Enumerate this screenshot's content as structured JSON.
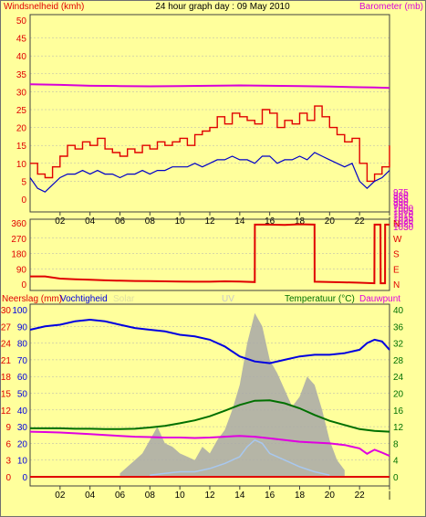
{
  "title": "24 hour graph day : 09 May 2010",
  "colors": {
    "background": "#FFFF9C",
    "wind": "#E00000",
    "gust": "#E00000",
    "wind_avg": "#0000C8",
    "barometer": "#D800D8",
    "direction": "#E00000",
    "humidity": "#0000E0",
    "temperature": "#007000",
    "dewpoint": "#E000E0",
    "rain": "#E00000",
    "solar": "#A8A8A8",
    "uv": "#A8C8F0",
    "grid": "#B0B0B0"
  },
  "chart_data": [
    {
      "type": "line",
      "name": "wind-barometer",
      "left_label": "Windsnelheid (kmh)",
      "right_label": "Barometer (mb)",
      "x_ticks": [
        "02",
        "04",
        "06",
        "08",
        "10",
        "12",
        "14",
        "16",
        "18",
        "20",
        "22",
        "|"
      ],
      "x_range": [
        0,
        24
      ],
      "y_left_ticks": [
        "0",
        "5",
        "10",
        "15",
        "20",
        "25",
        "30",
        "35",
        "40",
        "45",
        "50"
      ],
      "y_left_range": [
        0,
        50
      ],
      "y_right_ticks": [
        "975",
        "980",
        "985",
        "990",
        "995",
        "1000",
        "1005",
        "1010",
        "1015",
        "1020",
        "1025",
        "1030"
      ],
      "y_right_range": [
        972.5,
        1032.5
      ],
      "series": [
        {
          "key": "gust",
          "style": "step",
          "x": [
            0,
            0.5,
            1,
            1.5,
            2,
            2.5,
            3,
            3.5,
            4,
            4.5,
            5,
            5.5,
            6,
            6.5,
            7,
            7.5,
            8,
            8.5,
            9,
            9.5,
            10,
            10.5,
            11,
            11.5,
            12,
            12.5,
            13,
            13.5,
            14,
            14.5,
            15,
            15.5,
            16,
            16.5,
            17,
            17.5,
            18,
            18.5,
            19,
            19.5,
            20,
            20.5,
            21,
            21.5,
            22,
            22.5,
            23,
            23.5,
            24
          ],
          "values": [
            10,
            7,
            6,
            9,
            12,
            15,
            14,
            16,
            15,
            17,
            14,
            13,
            12,
            14,
            13,
            15,
            14,
            16,
            15,
            16,
            17,
            15,
            18,
            19,
            20,
            23,
            21,
            24,
            23,
            22,
            21,
            25,
            24,
            20,
            22,
            21,
            24,
            22,
            26,
            23,
            20,
            18,
            16,
            17,
            10,
            5,
            7,
            9,
            15
          ]
        },
        {
          "key": "wind_avg",
          "style": "line",
          "x": [
            0,
            0.5,
            1,
            1.5,
            2,
            2.5,
            3,
            3.5,
            4,
            4.5,
            5,
            5.5,
            6,
            6.5,
            7,
            7.5,
            8,
            8.5,
            9,
            9.5,
            10,
            10.5,
            11,
            11.5,
            12,
            12.5,
            13,
            13.5,
            14,
            14.5,
            15,
            15.5,
            16,
            16.5,
            17,
            17.5,
            18,
            18.5,
            19,
            19.5,
            20,
            20.5,
            21,
            21.5,
            22,
            22.5,
            23,
            23.5,
            24
          ],
          "values": [
            6,
            3,
            2,
            4,
            6,
            7,
            7,
            8,
            7,
            8,
            7,
            7,
            6,
            7,
            7,
            8,
            7,
            8,
            8,
            9,
            9,
            9,
            10,
            9,
            10,
            11,
            11,
            12,
            11,
            11,
            10,
            12,
            12,
            10,
            11,
            11,
            12,
            11,
            13,
            12,
            11,
            10,
            9,
            10,
            5,
            3,
            5,
            6,
            8
          ]
        },
        {
          "key": "barometer",
          "axis": "right",
          "style": "line",
          "x": [
            0,
            2,
            4,
            6,
            8,
            10,
            12,
            14,
            16,
            18,
            20,
            22,
            23,
            24
          ],
          "values": [
            1011,
            1010.8,
            1010.5,
            1010.4,
            1010.3,
            1010.4,
            1010.5,
            1010.6,
            1010.5,
            1010.4,
            1010.2,
            1010,
            1009.9,
            1009.8
          ]
        }
      ]
    },
    {
      "type": "line",
      "name": "wind-direction",
      "x_range": [
        0,
        24
      ],
      "y_left_ticks": [
        "0",
        "90",
        "180",
        "270",
        "360"
      ],
      "y_left_range": [
        0,
        360
      ],
      "y_right_ticks": [
        "N",
        "E",
        "S",
        "W",
        "N"
      ],
      "series": [
        {
          "key": "direction",
          "style": "line",
          "x": [
            0,
            1,
            2,
            3,
            4,
            5,
            6,
            7,
            8,
            9,
            10,
            11,
            12,
            13,
            14,
            15,
            15.01,
            16,
            17,
            18,
            18.99,
            19,
            20,
            21,
            22,
            22.99,
            23,
            23.4,
            23.41,
            23.7,
            23.71,
            24
          ],
          "values": [
            45,
            45,
            32,
            28,
            25,
            22,
            20,
            18,
            17,
            16,
            15,
            14,
            14,
            16,
            15,
            12,
            350,
            350,
            348,
            352,
            350,
            14,
            12,
            10,
            8,
            5,
            350,
            350,
            5,
            5,
            350,
            350
          ]
        }
      ]
    },
    {
      "type": "line",
      "name": "climate",
      "left_label_1": "Neerslag (mm)",
      "left_label_2": "Vochtigheid",
      "left_label_faint": "Solar",
      "center_label": "UV",
      "right_label_1": "Temperatuur (°C)",
      "right_label_2": "Dauwpunt",
      "x_ticks": [
        "02",
        "04",
        "06",
        "08",
        "10",
        "12",
        "14",
        "16",
        "18",
        "20",
        "22",
        "|"
      ],
      "x_range": [
        0,
        24
      ],
      "y_left_ticks_rain": [
        "0",
        "3",
        "6",
        "9",
        "12",
        "15",
        "18",
        "21",
        "24",
        "27",
        "30"
      ],
      "y_left_ticks_humidity": [
        "0",
        "10",
        "20",
        "30",
        "40",
        "50",
        "60",
        "70",
        "80",
        "90",
        "100"
      ],
      "y_left_range": [
        0,
        100
      ],
      "y_right_ticks": [
        "0",
        "4",
        "8",
        "12",
        "16",
        "20",
        "24",
        "28",
        "32",
        "36",
        "40"
      ],
      "y_right_range": [
        0,
        40
      ],
      "series": [
        {
          "key": "humidity",
          "style": "line",
          "x": [
            0,
            1,
            2,
            3,
            4,
            5,
            6,
            7,
            8,
            9,
            10,
            11,
            12,
            13,
            14,
            15,
            16,
            17,
            18,
            19,
            20,
            21,
            22,
            22.5,
            23,
            23.5,
            24
          ],
          "values": [
            88,
            90,
            91,
            93,
            94,
            93,
            91,
            89,
            88,
            87,
            85,
            84,
            82,
            78,
            72,
            69,
            68,
            70,
            72,
            73,
            73,
            74,
            76,
            80,
            82,
            81,
            76
          ]
        },
        {
          "key": "temperature",
          "axis": "right",
          "style": "line",
          "x": [
            0,
            1,
            2,
            3,
            4,
            5,
            6,
            7,
            8,
            9,
            10,
            11,
            12,
            13,
            14,
            15,
            16,
            17,
            18,
            19,
            20,
            21,
            22,
            23,
            24
          ],
          "values": [
            11.6,
            11.6,
            11.6,
            11.5,
            11.5,
            11.4,
            11.4,
            11.5,
            11.8,
            12.2,
            12.8,
            13.5,
            14.5,
            15.8,
            17.2,
            18.2,
            18.3,
            17.6,
            16.4,
            14.8,
            13.4,
            12.4,
            11.4,
            11,
            10.8
          ]
        },
        {
          "key": "dewpoint",
          "axis": "right",
          "style": "line",
          "x": [
            0,
            1,
            2,
            3,
            4,
            5,
            6,
            7,
            8,
            9,
            10,
            11,
            12,
            13,
            14,
            15,
            16,
            17,
            18,
            19,
            20,
            21,
            22,
            22.5,
            23,
            23.5,
            24
          ],
          "values": [
            10.8,
            10.7,
            10.6,
            10.4,
            10.2,
            10,
            9.8,
            9.6,
            9.5,
            9.4,
            9.4,
            9.3,
            9.4,
            9.6,
            9.8,
            9.6,
            9.2,
            8.8,
            8.4,
            8.2,
            8,
            7.6,
            6.8,
            5.5,
            6.5,
            5.8,
            5
          ]
        },
        {
          "key": "rain",
          "style": "line",
          "x": [
            0,
            24
          ],
          "values": [
            0,
            0
          ]
        },
        {
          "key": "solar",
          "style": "area",
          "x": [
            6,
            6.5,
            7,
            7.5,
            8,
            8.5,
            9,
            9.5,
            10,
            10.5,
            11,
            11.5,
            12,
            12.5,
            13,
            13.5,
            14,
            14.5,
            15,
            15.5,
            16,
            16.5,
            17,
            17.5,
            18,
            18.5,
            19,
            19.5,
            20,
            20.5,
            21
          ],
          "values": [
            2,
            6,
            10,
            14,
            22,
            30,
            20,
            18,
            14,
            12,
            10,
            18,
            14,
            22,
            28,
            40,
            55,
            80,
            98,
            90,
            70,
            62,
            52,
            42,
            48,
            60,
            55,
            40,
            22,
            10,
            4
          ]
        },
        {
          "key": "uv",
          "style": "line",
          "x": [
            8,
            9,
            10,
            11,
            12,
            13,
            14,
            14.5,
            15,
            15.5,
            16,
            17,
            18,
            19,
            20
          ],
          "values": [
            1,
            2,
            3,
            3,
            5,
            8,
            12,
            18,
            22,
            20,
            14,
            10,
            6,
            3,
            1
          ]
        }
      ]
    }
  ]
}
